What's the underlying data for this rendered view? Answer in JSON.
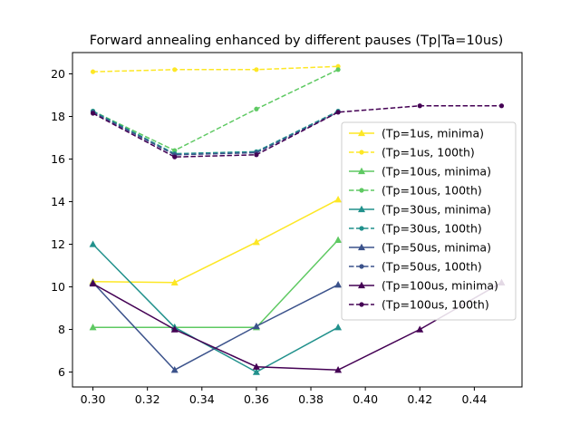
{
  "chart_data": {
    "type": "line",
    "title": "Forward annealing enhanced by different pauses (Tp|Ta=10us)",
    "xlabel": "",
    "ylabel": "",
    "xlim": [
      0.2925,
      0.4575
    ],
    "ylim": [
      5.3,
      21.0
    ],
    "xticks": [
      0.3,
      0.32,
      0.34,
      0.36,
      0.38,
      0.4,
      0.42,
      0.44
    ],
    "xtick_labels": [
      "0.30",
      "0.32",
      "0.34",
      "0.36",
      "0.38",
      "0.40",
      "0.42",
      "0.44"
    ],
    "yticks": [
      6,
      8,
      10,
      12,
      14,
      16,
      18,
      20
    ],
    "ytick_labels": [
      "6",
      "8",
      "10",
      "12",
      "14",
      "16",
      "18",
      "20"
    ],
    "grid": false,
    "legend_position": "right",
    "series": [
      {
        "name": "(Tp=1us, minima)",
        "color": "#fde725",
        "style": "solid",
        "marker": "triangle",
        "x": [
          0.3,
          0.33,
          0.36,
          0.39
        ],
        "y": [
          10.25,
          10.2,
          12.1,
          14.1
        ]
      },
      {
        "name": "(Tp=1us, 100th)",
        "color": "#fde725",
        "style": "dashed",
        "marker": "circle",
        "x": [
          0.3,
          0.33,
          0.36,
          0.39
        ],
        "y": [
          20.1,
          20.2,
          20.2,
          20.35
        ]
      },
      {
        "name": "(Tp=10us, minima)",
        "color": "#5ec962",
        "style": "solid",
        "marker": "triangle",
        "x": [
          0.3,
          0.33,
          0.36,
          0.39
        ],
        "y": [
          8.1,
          8.1,
          8.1,
          12.2
        ]
      },
      {
        "name": "(Tp=10us, 100th)",
        "color": "#5ec962",
        "style": "dashed",
        "marker": "circle",
        "x": [
          0.3,
          0.33,
          0.36,
          0.39
        ],
        "y": [
          18.25,
          16.4,
          18.35,
          20.2
        ]
      },
      {
        "name": "(Tp=30us, minima)",
        "color": "#21918c",
        "style": "solid",
        "marker": "triangle",
        "x": [
          0.3,
          0.33,
          0.36,
          0.39
        ],
        "y": [
          12.0,
          8.1,
          6.0,
          8.1
        ]
      },
      {
        "name": "(Tp=30us, 100th)",
        "color": "#21918c",
        "style": "dashed",
        "marker": "circle",
        "x": [
          0.3,
          0.33,
          0.36,
          0.39
        ],
        "y": [
          18.25,
          16.25,
          16.35,
          18.25
        ]
      },
      {
        "name": "(Tp=50us, minima)",
        "color": "#3b528b",
        "style": "solid",
        "marker": "triangle",
        "x": [
          0.3,
          0.33,
          0.36,
          0.39
        ],
        "y": [
          10.2,
          6.1,
          8.15,
          10.1
        ]
      },
      {
        "name": "(Tp=50us, 100th)",
        "color": "#3b528b",
        "style": "dashed",
        "marker": "circle",
        "x": [
          0.3,
          0.33,
          0.36,
          0.39
        ],
        "y": [
          18.2,
          16.2,
          16.3,
          18.2
        ]
      },
      {
        "name": "(Tp=100us, minima)",
        "color": "#440154",
        "style": "solid",
        "marker": "triangle",
        "x": [
          0.3,
          0.33,
          0.36,
          0.39,
          0.42,
          0.45
        ],
        "y": [
          10.15,
          8.0,
          6.25,
          6.1,
          8.0,
          10.2
        ]
      },
      {
        "name": "(Tp=100us, 100th)",
        "color": "#440154",
        "style": "dashed",
        "marker": "circle",
        "x": [
          0.3,
          0.33,
          0.36,
          0.39,
          0.42,
          0.45
        ],
        "y": [
          18.15,
          16.1,
          16.2,
          18.2,
          18.5,
          18.5
        ]
      }
    ]
  }
}
